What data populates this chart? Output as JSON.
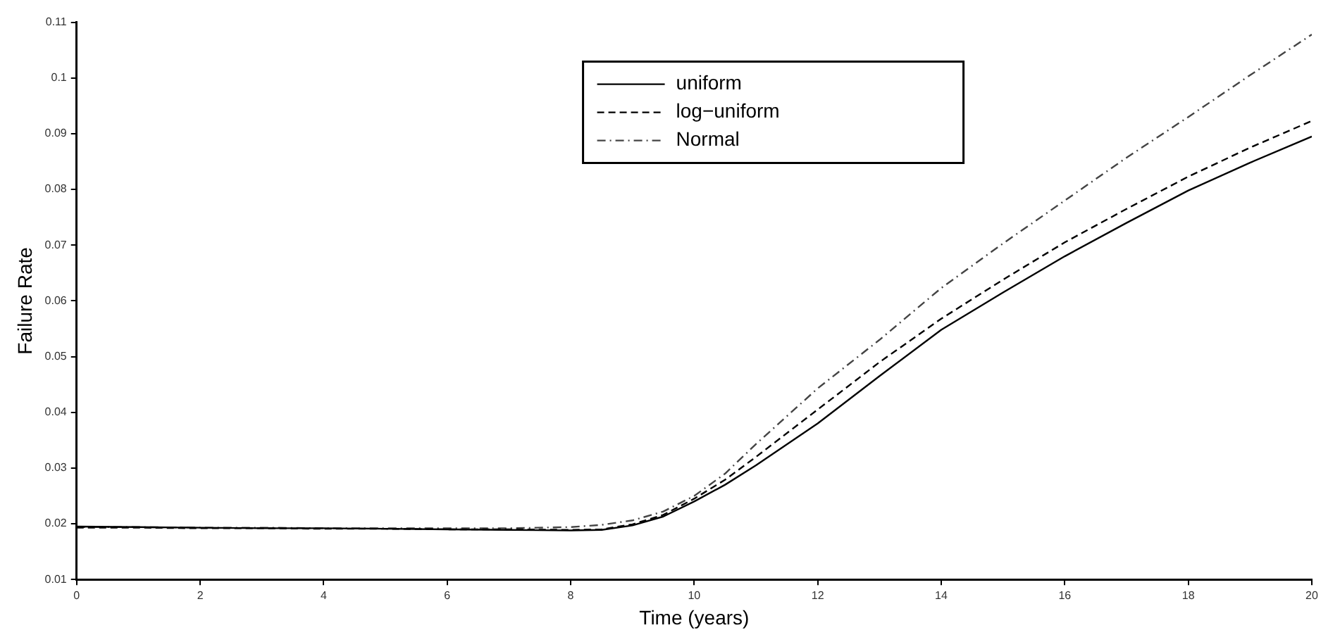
{
  "chart_data": {
    "type": "line",
    "xlabel": "Time (years)",
    "ylabel": "Failure Rate",
    "xlim": [
      0,
      20
    ],
    "xticks": [
      0,
      2,
      4,
      6,
      8,
      10,
      12,
      14,
      16,
      18,
      20
    ],
    "ylim": [
      0.01,
      0.11
    ],
    "yticks": [
      0.01,
      0.02,
      0.03,
      0.04,
      0.05,
      0.06,
      0.07,
      0.08,
      0.09,
      0.1,
      0.11
    ],
    "grid": false,
    "legend": "top",
    "marker": "none",
    "x": [
      0,
      1,
      2,
      3,
      4,
      5,
      6,
      7,
      8,
      8.5,
      9,
      9.5,
      10,
      10.5,
      11,
      12,
      13,
      14,
      15,
      16,
      17,
      18,
      19,
      20
    ],
    "series": [
      {
        "name": "uniform",
        "color": "#000000",
        "line_style": "solid",
        "values": [
          0.0195,
          0.0194,
          0.0193,
          0.0192,
          0.0192,
          0.0191,
          0.019,
          0.0189,
          0.0188,
          0.0189,
          0.0197,
          0.0213,
          0.024,
          0.027,
          0.0305,
          0.038,
          0.0465,
          0.0548,
          0.0615,
          0.068,
          0.074,
          0.0798,
          0.0848,
          0.0895
        ]
      },
      {
        "name": "log−uniform",
        "color": "#000000",
        "line_style": "dashed",
        "values": [
          0.0193,
          0.0193,
          0.0192,
          0.0192,
          0.0191,
          0.0191,
          0.019,
          0.019,
          0.0189,
          0.019,
          0.0199,
          0.0216,
          0.0245,
          0.0279,
          0.032,
          0.0405,
          0.049,
          0.0568,
          0.0638,
          0.0705,
          0.0765,
          0.0823,
          0.0875,
          0.0923
        ]
      },
      {
        "name": "Normal",
        "color": "#444444",
        "line_style": "dashdot",
        "values": [
          0.0194,
          0.0194,
          0.0193,
          0.0193,
          0.0192,
          0.0192,
          0.0192,
          0.0192,
          0.0194,
          0.0198,
          0.0206,
          0.0222,
          0.025,
          0.029,
          0.0343,
          0.0443,
          0.053,
          0.0623,
          0.0703,
          0.078,
          0.0857,
          0.093,
          0.1005,
          0.1078
        ]
      }
    ]
  }
}
